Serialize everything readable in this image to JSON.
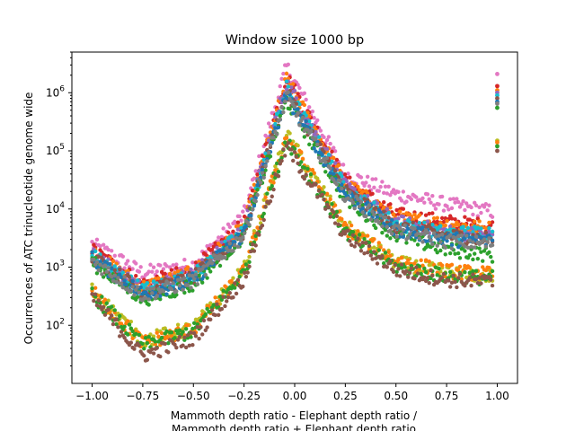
{
  "chart_data": {
    "type": "scatter",
    "title": "Window size 1000 bp",
    "xlabel_line1": "Mammoth depth ratio - Elephant depth ratio /",
    "xlabel_line2": "Mammoth depth ratio + Elephant depth ratio",
    "ylabel": "Occurrences of ATC trinucleotide genome wide",
    "xlim": [
      -1.1,
      1.1
    ],
    "ylim": [
      10,
      5000000
    ],
    "yscale": "log",
    "grid": false,
    "x_ticks": [
      {
        "value": -1.0,
        "label": "−1.00"
      },
      {
        "value": -0.75,
        "label": "−0.75"
      },
      {
        "value": -0.5,
        "label": "−0.50"
      },
      {
        "value": -0.25,
        "label": "−0.25"
      },
      {
        "value": 0.0,
        "label": "0.00"
      },
      {
        "value": 0.25,
        "label": "0.25"
      },
      {
        "value": 0.5,
        "label": "0.50"
      },
      {
        "value": 0.75,
        "label": "0.75"
      },
      {
        "value": 1.0,
        "label": "1.00"
      }
    ],
    "y_ticks": [
      {
        "value": 100,
        "base": "10",
        "exp": "2"
      },
      {
        "value": 1000,
        "base": "10",
        "exp": "3"
      },
      {
        "value": 10000,
        "base": "10",
        "exp": "4"
      },
      {
        "value": 100000,
        "base": "10",
        "exp": "5"
      },
      {
        "value": 1000000,
        "base": "10",
        "exp": "6"
      }
    ],
    "series": [
      {
        "color": "#e377c2",
        "values": {
          "-1.0": 2500,
          "-0.75": 800,
          "-0.5": 1100,
          "-0.25": 8000,
          "-0.04": 2800000,
          "0.25": 40000,
          "0.5": 18000,
          "0.75": 12000,
          "0.98": 9000,
          "1.0": 2100000
        }
      },
      {
        "color": "#d62728",
        "values": {
          "-1.0": 2000,
          "-0.75": 500,
          "-0.5": 900,
          "-0.25": 5500,
          "-0.04": 1900000,
          "0.25": 30000,
          "0.5": 8000,
          "0.75": 6000,
          "0.98": 5000,
          "1.0": 1300000
        }
      },
      {
        "color": "#ff7f0e",
        "values": {
          "-1.0": 1800,
          "-0.75": 450,
          "-0.5": 800,
          "-0.25": 5000,
          "-0.04": 1700000,
          "0.25": 27000,
          "0.5": 7000,
          "0.75": 5500,
          "0.98": 4500,
          "1.0": 1100000
        }
      },
      {
        "color": "#9467bd",
        "values": {
          "-1.0": 1700,
          "-0.75": 420,
          "-0.5": 750,
          "-0.25": 4500,
          "-0.04": 1500000,
          "0.25": 24000,
          "0.5": 6000,
          "0.75": 4000,
          "0.98": 3500,
          "1.0": 1000000
        }
      },
      {
        "color": "#17becf",
        "values": {
          "-1.0": 1600,
          "-0.75": 400,
          "-0.5": 700,
          "-0.25": 4200,
          "-0.04": 1200000,
          "0.25": 22000,
          "0.5": 5500,
          "0.75": 3800,
          "0.98": 4000,
          "1.0": 900000
        }
      },
      {
        "color": "#8c564b",
        "values": {
          "-1.0": 1500,
          "-0.75": 380,
          "-0.5": 650,
          "-0.25": 4000,
          "-0.04": 1000000,
          "0.25": 20000,
          "0.5": 5000,
          "0.75": 3500,
          "0.98": 3000,
          "1.0": 800000
        }
      },
      {
        "color": "#2ca02c",
        "values": {
          "-1.0": 1200,
          "-0.75": 280,
          "-0.5": 500,
          "-0.25": 3500,
          "-0.04": 750000,
          "0.25": 15000,
          "0.5": 3500,
          "0.75": 2000,
          "0.98": 1600,
          "1.0": 550000
        }
      },
      {
        "color": "#1f77b4",
        "values": {
          "-1.0": 1400,
          "-0.75": 350,
          "-0.5": 600,
          "-0.25": 3800,
          "-0.04": 900000,
          "0.25": 18000,
          "0.5": 4500,
          "0.75": 3000,
          "0.98": 2800,
          "1.0": 700000
        }
      },
      {
        "color": "#7f7f7f",
        "values": {
          "-1.0": 1300,
          "-0.75": 330,
          "-0.5": 580,
          "-0.25": 3600,
          "-0.04": 850000,
          "0.25": 17000,
          "0.5": 4200,
          "0.75": 2800,
          "0.98": 2500,
          "1.0": 650000
        }
      },
      {
        "color": "#bcbd22",
        "values": {
          "-1.0": 400,
          "-0.75": 55,
          "-0.5": 90,
          "-0.25": 900,
          "-0.04": 190000,
          "0.25": 5000,
          "0.5": 1200,
          "0.75": 800,
          "0.98": 700,
          "1.0": 150000
        }
      },
      {
        "color": "#ff7f0e",
        "values": {
          "-1.0": 380,
          "-0.75": 50,
          "-0.5": 85,
          "-0.25": 850,
          "-0.04": 180000,
          "0.25": 4800,
          "0.5": 1300,
          "0.75": 850,
          "0.98": 750,
          "1.0": 140000
        }
      },
      {
        "color": "#2ca02c",
        "values": {
          "-1.0": 350,
          "-0.75": 45,
          "-0.5": 80,
          "-0.25": 800,
          "-0.04": 160000,
          "0.25": 4000,
          "0.5": 1000,
          "0.75": 700,
          "0.98": 650,
          "1.0": 120000
        }
      },
      {
        "color": "#8c564b",
        "values": {
          "-1.0": 300,
          "-0.75": 30,
          "-0.5": 60,
          "-0.25": 650,
          "-0.04": 120000,
          "0.25": 3500,
          "0.5": 900,
          "0.75": 600,
          "0.98": 550,
          "1.0": 100000
        }
      }
    ]
  }
}
